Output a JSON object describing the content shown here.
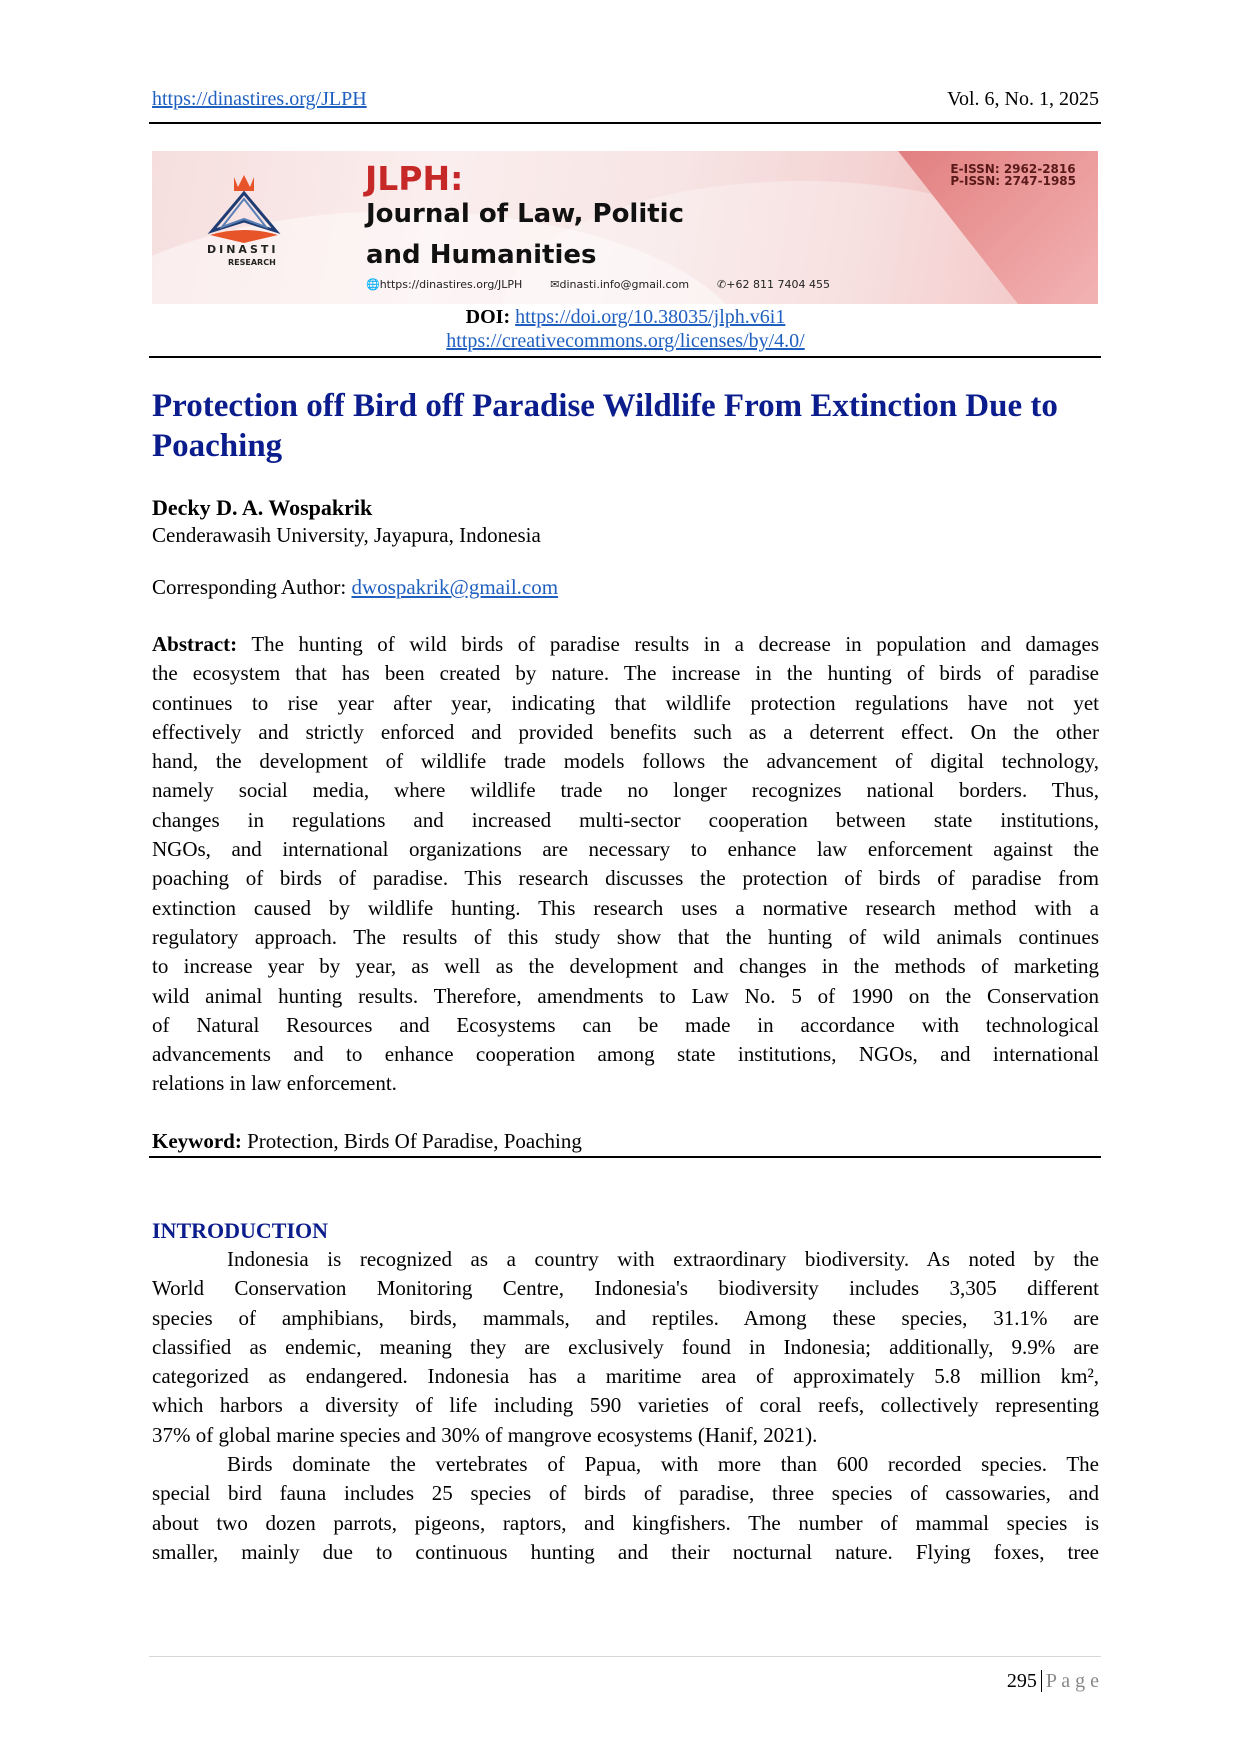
{
  "header": {
    "journal_url": "https://dinastires.org/JLPH",
    "volume": "Vol. 6, No. 1, 2025"
  },
  "banner": {
    "logo_text": "DINASTI",
    "logo_subtext": "RESEARCH",
    "acronym": "JLPH:",
    "name_line1": "Journal of Law, Politic",
    "name_line2": "and Humanities",
    "website": "https://dinastires.org/JLPH",
    "email": "dinasti.info@gmail.com",
    "phone": "+62 811 7404 455",
    "eissn": "E-ISSN: 2962-2816",
    "pissn": "P-ISSN: 2747-1985",
    "colors": {
      "accent": "#c62828",
      "background": "#f6dede"
    }
  },
  "doi": {
    "label": "DOI:",
    "url": "https://doi.org/10.38035/jlph.v6i1"
  },
  "license_url": "https://creativecommons.org/licenses/by/4.0/",
  "article": {
    "title_lines": [
      "Protection off Bird off Paradise Wildlife From Extinction Due to",
      "Poaching"
    ],
    "author": "Decky D. A. Wospakrik",
    "affiliation": "Cenderawasih University, Jayapura, Indonesia",
    "corresponding_label": "Corresponding Author:",
    "corresponding_email": "dwospakrik@gmail.com",
    "abstract_label": "Abstract:",
    "abstract_lines": [
      " The hunting of wild birds of paradise results in a decrease in population and damages",
      "the ecosystem that has been created by nature. The increase in the hunting of birds of paradise",
      "continues to rise year after year, indicating that wildlife protection regulations have not yet",
      "effectively and strictly enforced and provided benefits such as a deterrent effect. On the other",
      "hand, the development of wildlife trade models follows the advancement of digital technology,",
      "namely social media, where wildlife trade no longer recognizes national borders.  Thus,",
      "changes in regulations and increased multi-sector cooperation between state institutions,",
      "NGOs, and international organizations are necessary to enhance law enforcement against the",
      "poaching of birds of paradise. This research discusses the protection of birds of paradise from",
      "extinction caused by wildlife hunting. This research uses a normative research method with a",
      "regulatory approach. The results of this study show that the hunting of wild animals continues",
      "to increase year by year, as well as the development and changes in the methods of marketing",
      "wild animal hunting results. Therefore, amendments to Law No. 5 of 1990 on the Conservation",
      "of Natural Resources and Ecosystems can be made in accordance with technological",
      "advancements and to enhance cooperation among state institutions, NGOs, and international",
      "relations in law enforcement."
    ],
    "keyword_label": "Keyword:",
    "keywords": " Protection, Birds Of Paradise, Poaching",
    "intro_heading": "INTRODUCTION",
    "intro_p1_lines": [
      "Indonesia is recognized as a country with extraordinary biodiversity. As noted by the",
      "World Conservation Monitoring Centre, Indonesia's biodiversity includes 3,305 different",
      "species of amphibians, birds, mammals, and reptiles. Among these species, 31.1% are",
      "classified as endemic, meaning they are exclusively found in Indonesia; additionally, 9.9% are",
      "categorized as endangered. Indonesia has a maritime area of approximately 5.8 million km²,",
      "which harbors a diversity of life including 590 varieties of coral reefs, collectively representing",
      "37% of global marine species and 30% of mangrove ecosystems (Hanif, 2021)."
    ],
    "intro_p2_lines": [
      "Birds dominate the vertebrates of Papua, with more than 600 recorded species. The",
      "special bird fauna includes 25 species of birds of paradise, three species of cassowaries, and",
      "about two dozen parrots, pigeons, raptors, and kingfishers. The number of mammal species is",
      "smaller, mainly due to continuous hunting and their nocturnal nature. Flying foxes, tree"
    ]
  },
  "footer": {
    "page_number": "295",
    "page_label": "P a g e"
  }
}
